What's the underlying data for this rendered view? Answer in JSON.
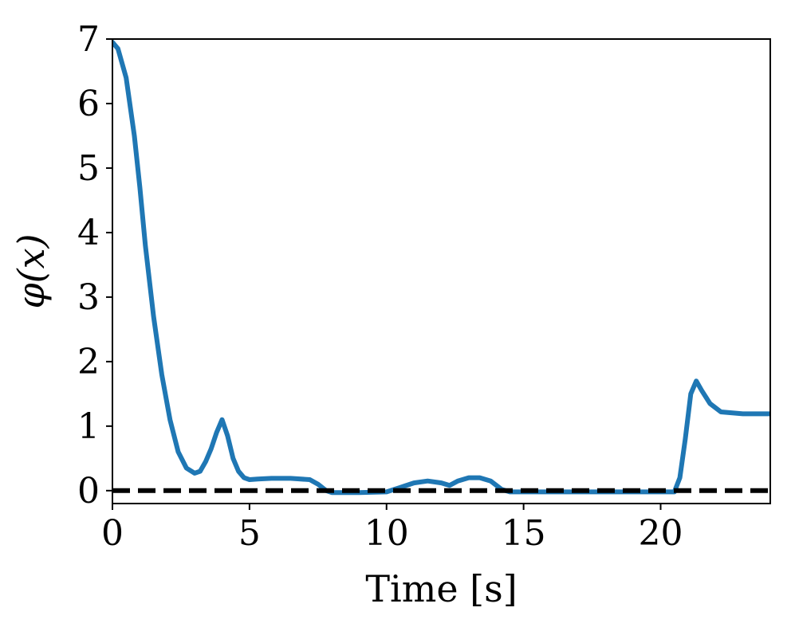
{
  "chart_data": {
    "type": "line",
    "title": "",
    "xlabel": "Time [s]",
    "ylabel": "φ(x)",
    "xlim": [
      0,
      24
    ],
    "ylim": [
      -0.2,
      7
    ],
    "xticks": [
      0,
      5,
      10,
      15,
      20
    ],
    "yticks": [
      0,
      1,
      2,
      3,
      4,
      5,
      6,
      7
    ],
    "grid": false,
    "legend": "none",
    "colors": {
      "series": "#1f77b4",
      "reference": "#000000"
    },
    "series": [
      {
        "style": "solid",
        "x": [
          0,
          0.2,
          0.5,
          0.8,
          1.0,
          1.2,
          1.5,
          1.8,
          2.1,
          2.4,
          2.7,
          3.0,
          3.2,
          3.4,
          3.6,
          3.8,
          4.0,
          4.2,
          4.4,
          4.6,
          4.8,
          5.0,
          5.3,
          5.8,
          6.5,
          7.2,
          7.5,
          7.8,
          8.0,
          9.0,
          10.0,
          10.5,
          11.0,
          11.5,
          12.0,
          12.3,
          12.6,
          13.0,
          13.4,
          13.8,
          14.2,
          14.5,
          15.0,
          17.0,
          19.0,
          20.0,
          20.5,
          20.7,
          20.9,
          21.1,
          21.3,
          21.5,
          21.8,
          22.2,
          23.0,
          24.0
        ],
        "y": [
          6.95,
          6.85,
          6.4,
          5.5,
          4.7,
          3.8,
          2.7,
          1.8,
          1.1,
          0.6,
          0.35,
          0.27,
          0.3,
          0.45,
          0.65,
          0.9,
          1.1,
          0.85,
          0.5,
          0.3,
          0.2,
          0.17,
          0.18,
          0.19,
          0.19,
          0.17,
          0.1,
          0.0,
          -0.03,
          -0.03,
          -0.02,
          0.05,
          0.12,
          0.15,
          0.12,
          0.08,
          0.15,
          0.2,
          0.2,
          0.15,
          0.02,
          -0.02,
          -0.02,
          -0.02,
          -0.02,
          -0.02,
          -0.02,
          0.2,
          0.8,
          1.5,
          1.7,
          1.55,
          1.35,
          1.22,
          1.19,
          1.19
        ]
      },
      {
        "style": "dashed",
        "x": [
          0,
          24
        ],
        "y": [
          0,
          0
        ]
      }
    ]
  }
}
